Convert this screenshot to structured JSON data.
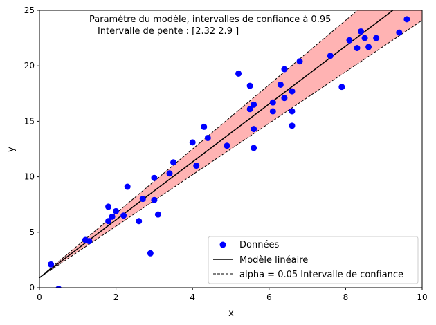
{
  "chart_data": {
    "type": "scatter",
    "title": "",
    "annotation": {
      "line1": "Paramètre du modèle, intervalles de confiance à 0.95",
      "line2": "Intervalle de pente : [2.32 2.9 ]"
    },
    "xlabel": "x",
    "ylabel": "y",
    "xlim": [
      0,
      10
    ],
    "ylim": [
      0,
      25
    ],
    "xticks": [
      0,
      2,
      4,
      6,
      8,
      10
    ],
    "yticks": [
      0,
      5,
      10,
      15,
      20,
      25
    ],
    "grid": false,
    "legend_position": "lower-right",
    "series": [
      {
        "name": "Données",
        "kind": "scatter",
        "color": "#0000ff",
        "points": [
          [
            0.3,
            2.1
          ],
          [
            0.5,
            -0.1
          ],
          [
            1.2,
            4.3
          ],
          [
            1.3,
            4.2
          ],
          [
            1.8,
            7.3
          ],
          [
            1.8,
            6.0
          ],
          [
            1.9,
            6.4
          ],
          [
            2.0,
            6.9
          ],
          [
            2.2,
            6.5
          ],
          [
            2.3,
            9.1
          ],
          [
            2.6,
            6.0
          ],
          [
            2.7,
            8.0
          ],
          [
            2.9,
            3.1
          ],
          [
            3.0,
            7.9
          ],
          [
            3.0,
            9.9
          ],
          [
            3.1,
            6.6
          ],
          [
            3.4,
            10.3
          ],
          [
            3.5,
            11.3
          ],
          [
            4.0,
            13.1
          ],
          [
            4.1,
            11.0
          ],
          [
            4.3,
            14.5
          ],
          [
            4.4,
            13.5
          ],
          [
            4.9,
            12.8
          ],
          [
            5.2,
            19.3
          ],
          [
            5.5,
            18.2
          ],
          [
            5.5,
            16.1
          ],
          [
            5.6,
            16.5
          ],
          [
            5.6,
            14.3
          ],
          [
            5.6,
            12.6
          ],
          [
            6.1,
            16.7
          ],
          [
            6.1,
            15.9
          ],
          [
            6.3,
            18.3
          ],
          [
            6.4,
            19.7
          ],
          [
            6.4,
            17.1
          ],
          [
            6.6,
            14.6
          ],
          [
            6.6,
            17.7
          ],
          [
            6.6,
            15.9
          ],
          [
            6.8,
            20.4
          ],
          [
            7.6,
            20.9
          ],
          [
            7.9,
            18.1
          ],
          [
            8.1,
            22.3
          ],
          [
            8.3,
            21.6
          ],
          [
            8.4,
            23.1
          ],
          [
            8.5,
            22.5
          ],
          [
            8.6,
            21.7
          ],
          [
            8.8,
            22.5
          ],
          [
            9.4,
            23.0
          ],
          [
            9.6,
            24.2
          ]
        ]
      },
      {
        "name": "Modèle linéaire",
        "kind": "line",
        "color": "#000000",
        "intercept": 0.9,
        "slope": 2.61
      },
      {
        "name": "alpha = 0.05 Intervalle de confiance",
        "kind": "band",
        "color": "#000000",
        "fill": "#ffb3b3",
        "intercept": 0.9,
        "slope_low": 2.32,
        "slope_high": 2.9
      }
    ]
  }
}
